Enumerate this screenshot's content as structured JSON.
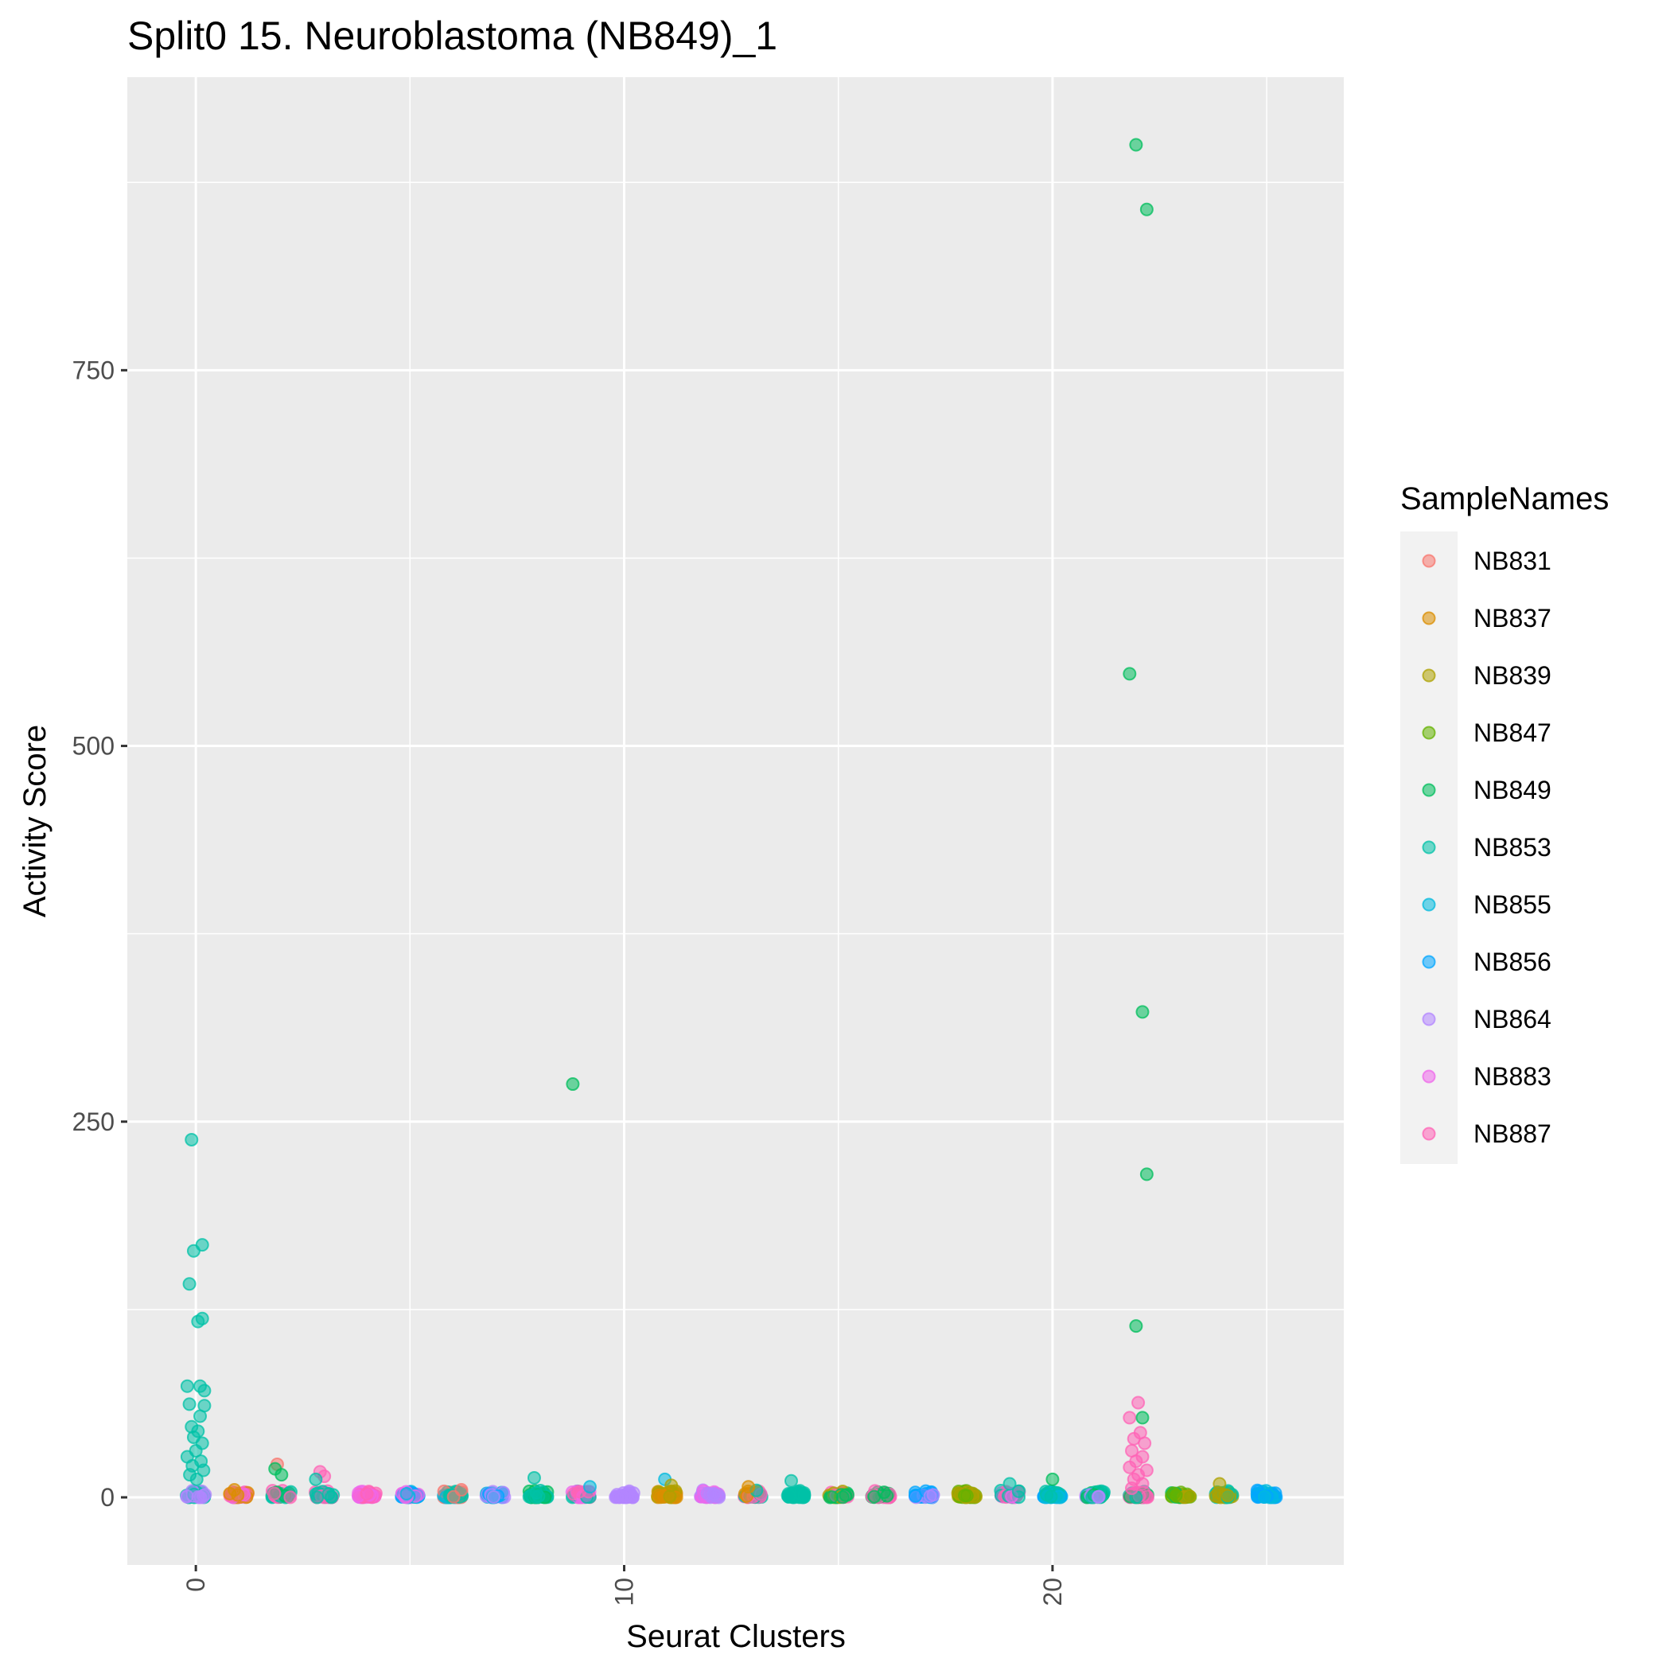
{
  "chart_data": {
    "type": "scatter",
    "title": "Split0 15. Neuroblastoma (NB849)_1",
    "xlabel": "Seurat Clusters",
    "ylabel": "Activity Score",
    "xlim": [
      -1.6,
      26.8
    ],
    "ylim": [
      -45,
      945
    ],
    "x_ticks": [
      0,
      10,
      20
    ],
    "x_tick_labels": [
      "0",
      "10",
      "20"
    ],
    "y_ticks": [
      0,
      250,
      500,
      750
    ],
    "y_tick_labels": [
      "0",
      "250",
      "500",
      "750"
    ],
    "x_tick_label_rotation": "vertical",
    "grid": true,
    "legend": {
      "title": "SampleNames",
      "position": "right",
      "entries": [
        "NB831",
        "NB837",
        "NB839",
        "NB847",
        "NB849",
        "NB853",
        "NB855",
        "NB856",
        "NB864",
        "NB883",
        "NB887"
      ]
    },
    "colors": {
      "NB831": "#F8766D",
      "NB837": "#DB8E00",
      "NB839": "#AEA200",
      "NB847": "#64B200",
      "NB849": "#00BD5C",
      "NB853": "#00C1A7",
      "NB855": "#00BADE",
      "NB856": "#00A6FF",
      "NB864": "#B385FF",
      "NB883": "#EF67EB",
      "NB887": "#FF63B6"
    },
    "panel_background": "#EBEBEB",
    "grid_color": "#FFFFFF",
    "outliers": [
      {
        "cluster": 21.95,
        "value": 900,
        "sample": "NB849"
      },
      {
        "cluster": 22.2,
        "value": 857,
        "sample": "NB849"
      },
      {
        "cluster": 21.8,
        "value": 548,
        "sample": "NB849"
      },
      {
        "cluster": 22.1,
        "value": 323,
        "sample": "NB849"
      },
      {
        "cluster": 8.8,
        "value": 275,
        "sample": "NB849"
      },
      {
        "cluster": 22.2,
        "value": 215,
        "sample": "NB849"
      },
      {
        "cluster": 21.95,
        "value": 114,
        "sample": "NB849"
      },
      {
        "cluster": -0.1,
        "value": 238,
        "sample": "NB853"
      },
      {
        "cluster": 0.15,
        "value": 168,
        "sample": "NB853"
      },
      {
        "cluster": -0.05,
        "value": 164,
        "sample": "NB853"
      },
      {
        "cluster": -0.15,
        "value": 142,
        "sample": "NB853"
      },
      {
        "cluster": 0.15,
        "value": 119,
        "sample": "NB853"
      },
      {
        "cluster": 0.05,
        "value": 117,
        "sample": "NB853"
      },
      {
        "cluster": -0.2,
        "value": 74,
        "sample": "NB853"
      },
      {
        "cluster": 0.1,
        "value": 74,
        "sample": "NB853"
      },
      {
        "cluster": 0.2,
        "value": 71,
        "sample": "NB853"
      },
      {
        "cluster": -0.15,
        "value": 62,
        "sample": "NB853"
      },
      {
        "cluster": 0.2,
        "value": 61,
        "sample": "NB853"
      },
      {
        "cluster": 0.1,
        "value": 54,
        "sample": "NB853"
      },
      {
        "cluster": -0.1,
        "value": 47,
        "sample": "NB853"
      },
      {
        "cluster": 0.05,
        "value": 44,
        "sample": "NB853"
      },
      {
        "cluster": -0.05,
        "value": 40,
        "sample": "NB853"
      },
      {
        "cluster": 0.15,
        "value": 36,
        "sample": "NB853"
      },
      {
        "cluster": 0.0,
        "value": 31,
        "sample": "NB853"
      },
      {
        "cluster": -0.2,
        "value": 27,
        "sample": "NB853"
      },
      {
        "cluster": 0.12,
        "value": 24,
        "sample": "NB853"
      },
      {
        "cluster": -0.08,
        "value": 21,
        "sample": "NB853"
      },
      {
        "cluster": 0.18,
        "value": 18,
        "sample": "NB853"
      },
      {
        "cluster": -0.14,
        "value": 15,
        "sample": "NB853"
      },
      {
        "cluster": 0.02,
        "value": 12,
        "sample": "NB853"
      },
      {
        "cluster": 22.0,
        "value": 63,
        "sample": "NB887"
      },
      {
        "cluster": 21.8,
        "value": 53,
        "sample": "NB887"
      },
      {
        "cluster": 22.1,
        "value": 53,
        "sample": "NB849"
      },
      {
        "cluster": 22.05,
        "value": 43,
        "sample": "NB887"
      },
      {
        "cluster": 21.9,
        "value": 39,
        "sample": "NB887"
      },
      {
        "cluster": 22.15,
        "value": 36,
        "sample": "NB887"
      },
      {
        "cluster": 21.85,
        "value": 31,
        "sample": "NB887"
      },
      {
        "cluster": 22.1,
        "value": 27,
        "sample": "NB887"
      },
      {
        "cluster": 21.95,
        "value": 24,
        "sample": "NB887"
      },
      {
        "cluster": 21.8,
        "value": 20,
        "sample": "NB887"
      },
      {
        "cluster": 22.2,
        "value": 18,
        "sample": "NB887"
      },
      {
        "cluster": 22.0,
        "value": 15,
        "sample": "NB887"
      },
      {
        "cluster": 21.9,
        "value": 12,
        "sample": "NB887"
      },
      {
        "cluster": 22.1,
        "value": 9,
        "sample": "NB887"
      },
      {
        "cluster": 21.85,
        "value": 6,
        "sample": "NB887"
      },
      {
        "cluster": 1.9,
        "value": 22,
        "sample": "NB831"
      },
      {
        "cluster": 2.0,
        "value": 15,
        "sample": "NB849"
      },
      {
        "cluster": 1.85,
        "value": 19,
        "sample": "NB849"
      },
      {
        "cluster": 2.9,
        "value": 17,
        "sample": "NB887"
      },
      {
        "cluster": 3.0,
        "value": 14,
        "sample": "NB887"
      },
      {
        "cluster": 2.8,
        "value": 12,
        "sample": "NB853"
      },
      {
        "cluster": 7.9,
        "value": 13,
        "sample": "NB853"
      },
      {
        "cluster": 10.95,
        "value": 12,
        "sample": "NB855"
      },
      {
        "cluster": 13.9,
        "value": 11,
        "sample": "NB853"
      },
      {
        "cluster": 19.0,
        "value": 9,
        "sample": "NB853"
      },
      {
        "cluster": 20.0,
        "value": 12,
        "sample": "NB849"
      },
      {
        "cluster": 23.9,
        "value": 9,
        "sample": "NB839"
      },
      {
        "cluster": 9.2,
        "value": 7,
        "sample": "NB855"
      },
      {
        "cluster": 12.9,
        "value": 7,
        "sample": "NB837"
      },
      {
        "cluster": 6.2,
        "value": 5,
        "sample": "NB831"
      },
      {
        "cluster": 11.1,
        "value": 8,
        "sample": "NB839"
      },
      {
        "cluster": 0.9,
        "value": 5,
        "sample": "NB837"
      }
    ],
    "cluster_dominant_samples": [
      {
        "cluster": 0,
        "samples": [
          "NB853",
          "NB864"
        ]
      },
      {
        "cluster": 1,
        "samples": [
          "NB887",
          "NB837",
          "NB883"
        ]
      },
      {
        "cluster": 2,
        "samples": [
          "NB849",
          "NB853",
          "NB887"
        ]
      },
      {
        "cluster": 3,
        "samples": [
          "NB887",
          "NB853"
        ]
      },
      {
        "cluster": 4,
        "samples": [
          "NB883",
          "NB887"
        ]
      },
      {
        "cluster": 5,
        "samples": [
          "NB855",
          "NB856",
          "NB883"
        ]
      },
      {
        "cluster": 6,
        "samples": [
          "NB831",
          "NB855",
          "NB853"
        ]
      },
      {
        "cluster": 7,
        "samples": [
          "NB856",
          "NB864",
          "NB855"
        ]
      },
      {
        "cluster": 8,
        "samples": [
          "NB853",
          "NB849"
        ]
      },
      {
        "cluster": 9,
        "samples": [
          "NB887",
          "NB883",
          "NB853"
        ]
      },
      {
        "cluster": 10,
        "samples": [
          "NB864"
        ]
      },
      {
        "cluster": 11,
        "samples": [
          "NB839",
          "NB837"
        ]
      },
      {
        "cluster": 12,
        "samples": [
          "NB864",
          "NB883"
        ]
      },
      {
        "cluster": 13,
        "samples": [
          "NB853",
          "NB837",
          "NB887"
        ]
      },
      {
        "cluster": 14,
        "samples": [
          "NB853"
        ]
      },
      {
        "cluster": 15,
        "samples": [
          "NB849",
          "NB887",
          "NB839"
        ]
      },
      {
        "cluster": 16,
        "samples": [
          "NB887",
          "NB849"
        ]
      },
      {
        "cluster": 17,
        "samples": [
          "NB856",
          "NB864"
        ]
      },
      {
        "cluster": 18,
        "samples": [
          "NB847",
          "NB839"
        ]
      },
      {
        "cluster": 19,
        "samples": [
          "NB887",
          "NB853",
          "NB883"
        ]
      },
      {
        "cluster": 20,
        "samples": [
          "NB855",
          "NB853",
          "NB856"
        ]
      },
      {
        "cluster": 21,
        "samples": [
          "NB864",
          "NB853",
          "NB849"
        ]
      },
      {
        "cluster": 22,
        "samples": [
          "NB853",
          "NB849",
          "NB887"
        ]
      },
      {
        "cluster": 23,
        "samples": [
          "NB847",
          "NB849",
          "NB839"
        ]
      },
      {
        "cluster": 24,
        "samples": [
          "NB853",
          "NB839"
        ]
      },
      {
        "cluster": 25,
        "samples": [
          "NB856",
          "NB855"
        ]
      }
    ]
  }
}
